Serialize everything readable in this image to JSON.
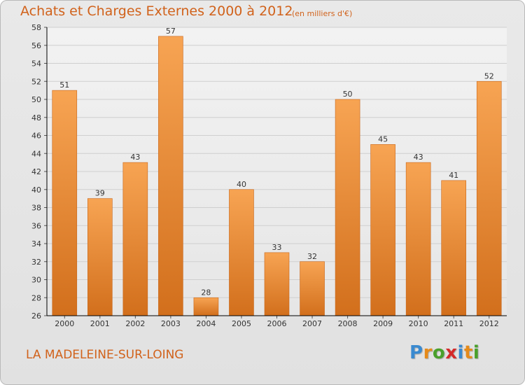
{
  "header": {
    "title": "Achats et Charges Externes 2000 à 2012",
    "unit": "(en milliers d'€)"
  },
  "footer": {
    "commune": "LA MADELEINE-SUR-LOING",
    "logo_letters": [
      "P",
      "r",
      "o",
      "x",
      "i",
      "t",
      "i"
    ],
    "logo_colors": [
      "#3a8ad0",
      "#e58a1a",
      "#4aa02c",
      "#d42a2a",
      "#3a8ad0",
      "#e58a1a",
      "#4aa02c"
    ]
  },
  "chart_data": {
    "type": "bar",
    "categories": [
      "2000",
      "2001",
      "2002",
      "2003",
      "2004",
      "2005",
      "2006",
      "2007",
      "2008",
      "2009",
      "2010",
      "2011",
      "2012"
    ],
    "values": [
      51,
      39,
      43,
      57,
      28,
      40,
      33,
      32,
      50,
      45,
      43,
      41,
      52
    ],
    "ylim": [
      26,
      58
    ],
    "yticks": [
      26,
      28,
      30,
      32,
      34,
      36,
      38,
      40,
      42,
      44,
      46,
      48,
      50,
      52,
      54,
      56,
      58
    ],
    "grid": true,
    "bar_color_top": "#f7a453",
    "bar_color_bottom": "#d26f1c",
    "axis_color": "#000000"
  }
}
